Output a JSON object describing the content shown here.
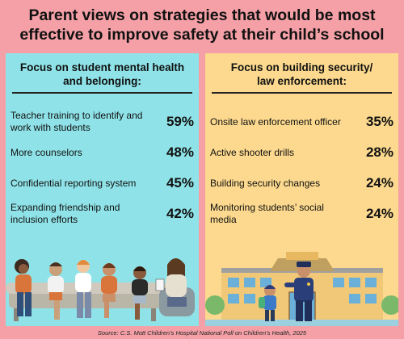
{
  "title_line1": "Parent views on strategies that would be most",
  "title_line2": "effective to improve safety at their child’s school",
  "left": {
    "heading_line1": "Focus on student mental health",
    "heading_line2": "and belonging:",
    "items": [
      {
        "label": "Teacher training to identify and work with students",
        "value": "59%"
      },
      {
        "label": "More counselors",
        "value": "48%"
      },
      {
        "label": "Confidential reporting system",
        "value": "45%"
      },
      {
        "label": "Expanding friendship and inclusion efforts",
        "value": "42%"
      }
    ]
  },
  "right": {
    "heading_line1": "Focus on building security/",
    "heading_line2": "law enforcement:",
    "items": [
      {
        "label": "Onsite law enforcement officer",
        "value": "35%"
      },
      {
        "label": "Active shooter drills",
        "value": "28%"
      },
      {
        "label": "Building security changes",
        "value": "24%"
      },
      {
        "label": "Monitoring students’ social media",
        "value": "24%"
      }
    ]
  },
  "source": "Source: C.S. Mott Children’s Hospital National Poll on Children’s Health, 2025",
  "colors": {
    "background": "#f4a0a6",
    "left_panel": "#8fe3e8",
    "right_panel": "#fcd98e"
  }
}
